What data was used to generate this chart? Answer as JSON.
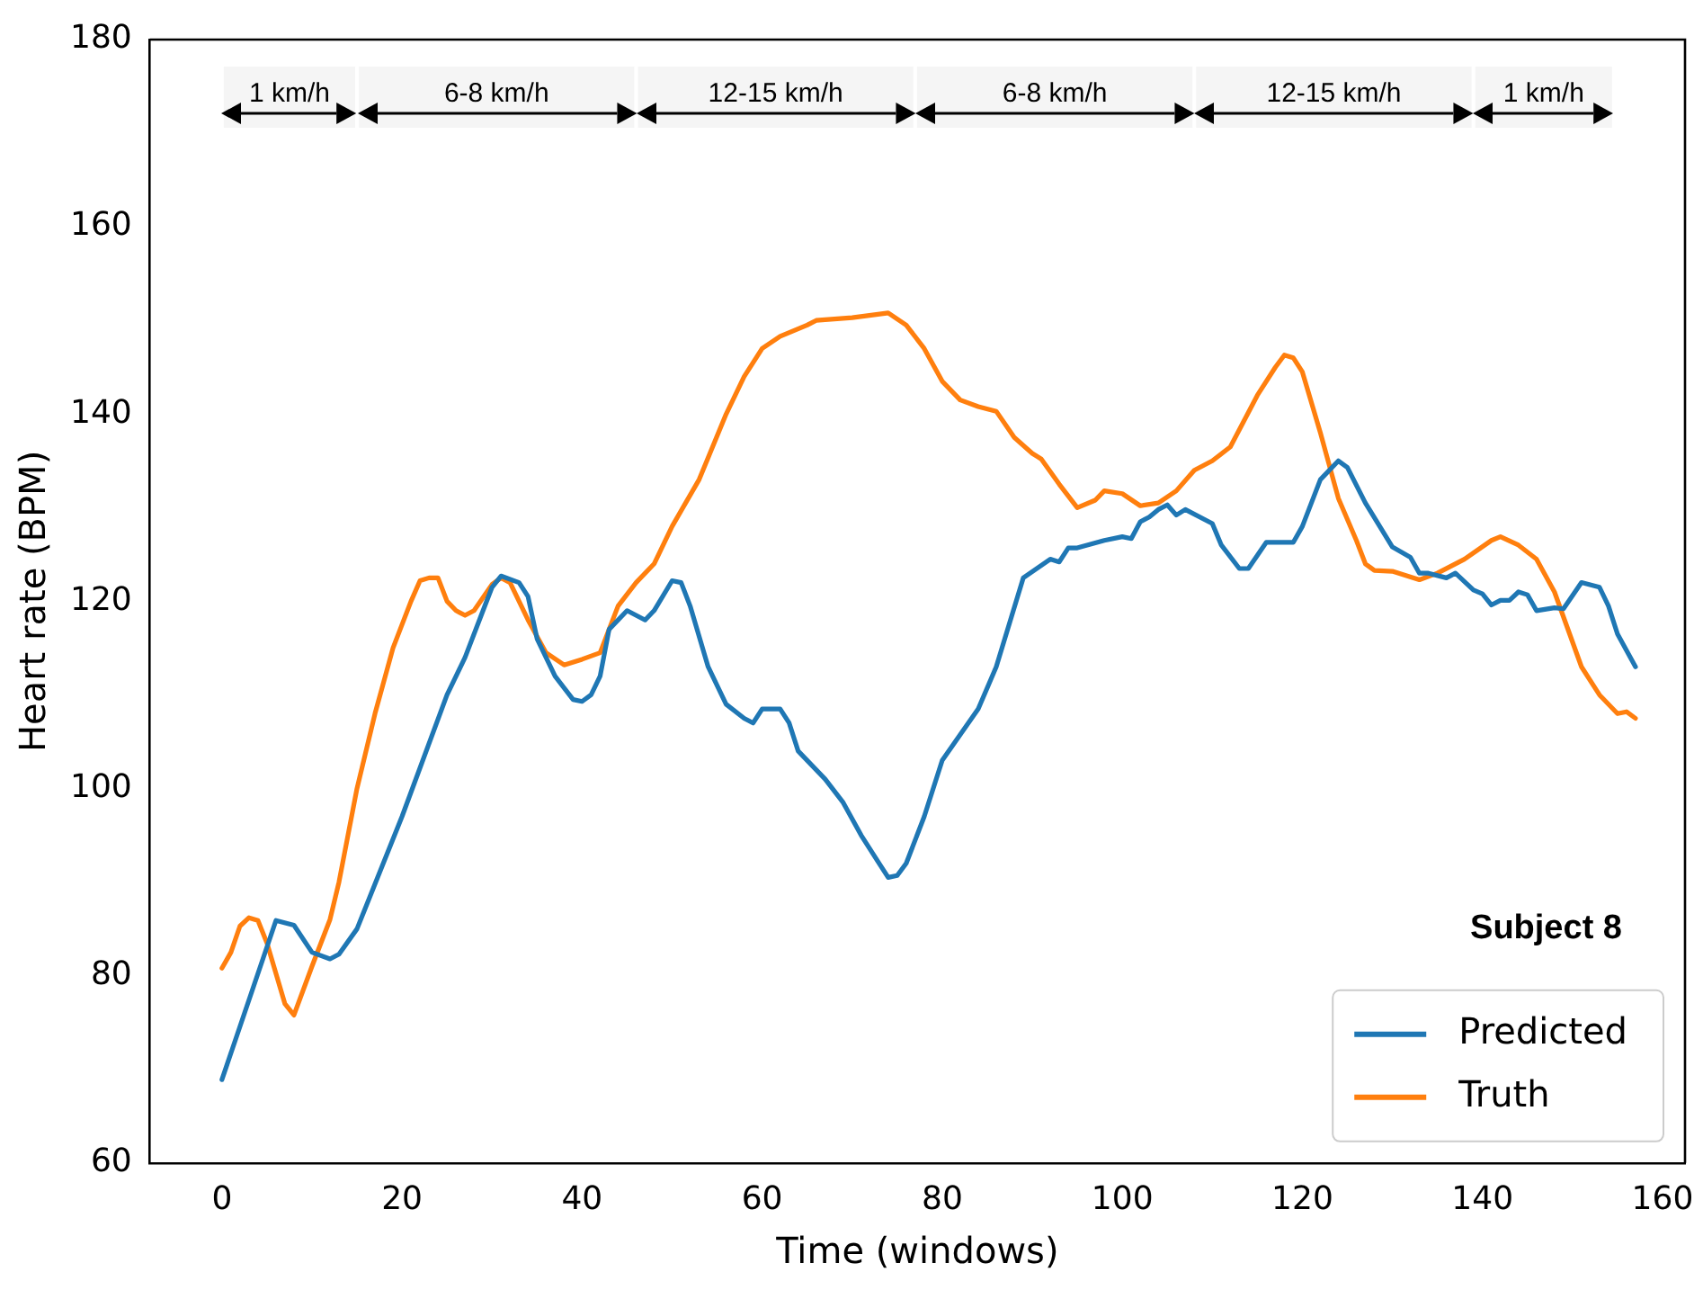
{
  "chart_data": {
    "type": "line",
    "xlabel": "Time (windows)",
    "ylabel": "Heart rate (BPM)",
    "xlim": [
      -8,
      162.5
    ],
    "ylim": [
      60,
      180
    ],
    "xticks": [
      0,
      20,
      40,
      60,
      80,
      100,
      120,
      140,
      160
    ],
    "yticks": [
      60,
      80,
      100,
      120,
      140,
      160,
      180
    ],
    "grid": false,
    "legend": "bottom right",
    "marker": "none",
    "line_style": "solid",
    "annotations": [
      "Subject 8"
    ],
    "bands": [
      {
        "axis": "x",
        "from": 0,
        "to": 15,
        "label": "1 km/h",
        "color": "#000000"
      },
      {
        "axis": "x",
        "from": 15,
        "to": 46,
        "label": "6-8 km/h",
        "color": "#000000"
      },
      {
        "axis": "x",
        "from": 46,
        "to": 77,
        "label": "12-15 km/h",
        "color": "#000000"
      },
      {
        "axis": "x",
        "from": 77,
        "to": 108,
        "label": "6-8 km/h",
        "color": "#000000"
      },
      {
        "axis": "x",
        "from": 108,
        "to": 139,
        "label": "12-15 km/h",
        "color": "#000000"
      },
      {
        "axis": "x",
        "from": 139,
        "to": 154.6,
        "label": "1 km/h",
        "color": "#000000"
      }
    ],
    "series": [
      {
        "name": "Predicted",
        "color": "#1f77b4",
        "x": [
          0,
          6,
          8,
          10,
          12,
          13,
          15,
          20,
          25,
          27,
          29,
          30,
          31,
          33,
          34,
          35,
          37,
          39,
          40,
          41,
          42,
          43,
          45,
          46,
          47,
          48,
          50,
          51,
          52,
          54,
          56,
          58,
          59,
          60,
          62,
          63,
          64,
          67,
          69,
          71,
          73,
          74,
          75,
          76,
          78,
          80,
          84,
          86,
          89,
          92,
          93,
          94,
          95,
          98,
          100,
          101,
          102,
          103,
          104,
          105,
          106,
          107,
          110,
          111,
          113,
          114,
          116,
          119,
          120,
          122,
          124,
          125,
          127,
          130,
          132,
          133,
          134,
          136,
          137,
          139,
          140,
          141,
          142,
          143,
          144,
          145,
          146,
          148,
          149,
          151,
          153,
          154,
          155,
          157
        ],
        "values": [
          68.9,
          85.9,
          85.4,
          82.5,
          81.8,
          82.3,
          85,
          97,
          110,
          114,
          119,
          121.5,
          122.7,
          122,
          120.5,
          116,
          112,
          109.5,
          109.3,
          110,
          112,
          117,
          119,
          118.5,
          118,
          119,
          122.2,
          122,
          119.5,
          113,
          109,
          107.5,
          107,
          108.5,
          108.5,
          107,
          104,
          101,
          98.5,
          95,
          92,
          90.5,
          90.7,
          92,
          97,
          103,
          108.5,
          113,
          122.5,
          124.5,
          124.2,
          125.7,
          125.7,
          126.5,
          126.9,
          126.7,
          128.5,
          129,
          129.8,
          130.3,
          129.2,
          129.8,
          128.3,
          126,
          123.5,
          123.5,
          126.3,
          126.3,
          128,
          133,
          135,
          134.3,
          130.5,
          125.8,
          124.7,
          123,
          123,
          122.5,
          123,
          121.2,
          120.8,
          119.6,
          120.1,
          120.1,
          121,
          120.7,
          119,
          119.3,
          119.2,
          122,
          121.5,
          119.5,
          116.5,
          113
        ]
      },
      {
        "name": "Truth",
        "color": "#ff7f0e",
        "x": [
          0,
          1,
          2,
          3,
          4,
          5,
          7,
          8,
          10,
          12,
          13,
          15,
          17,
          19,
          21,
          22,
          23,
          24,
          25,
          26,
          27,
          28,
          30,
          31,
          32,
          34,
          36,
          38,
          40,
          42,
          44,
          46,
          48,
          50,
          53,
          56,
          58,
          60,
          62,
          65,
          66,
          70,
          74,
          76,
          78,
          80,
          82,
          84,
          86,
          88,
          90,
          91,
          93,
          95,
          97,
          98,
          100,
          102,
          104,
          106,
          108,
          110,
          112,
          115,
          117,
          118,
          119,
          120,
          122,
          124,
          126,
          127,
          128,
          130,
          133,
          135,
          138,
          141,
          142,
          144,
          146,
          148,
          151,
          153,
          155,
          156,
          157
        ],
        "values": [
          80.8,
          82.5,
          85.3,
          86.2,
          85.9,
          83.5,
          77,
          75.8,
          81,
          86,
          90,
          100,
          108,
          115,
          120,
          122.2,
          122.5,
          122.5,
          120,
          119,
          118.5,
          119,
          121.8,
          122.5,
          122,
          118,
          114.5,
          113.2,
          113.8,
          114.5,
          119.5,
          122,
          124,
          128,
          133,
          140,
          144,
          147,
          148.3,
          149.5,
          150,
          150.3,
          150.8,
          149.5,
          147,
          143.5,
          141.5,
          140.8,
          140.3,
          137.5,
          135.8,
          135.2,
          132.5,
          130,
          130.8,
          131.8,
          131.5,
          130.2,
          130.5,
          131.8,
          134,
          135,
          136.5,
          142,
          145,
          146.3,
          146,
          144.5,
          138,
          131,
          126.5,
          124,
          123.3,
          123.2,
          122.3,
          123,
          124.5,
          126.5,
          126.9,
          126,
          124.5,
          121,
          113,
          110,
          108,
          108.2,
          107.5
        ]
      }
    ]
  }
}
